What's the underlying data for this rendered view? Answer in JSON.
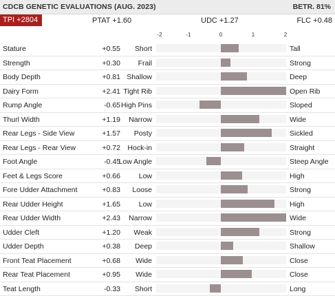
{
  "header": {
    "title": "CDCB GENETIC EVALUATIONS (AUG. 2023)",
    "reliability": "BETR. 81%"
  },
  "summary": {
    "tpi": "TPI +2804",
    "ptat": "PTAT +1.60",
    "udc": "UDC +1.27",
    "flc": "FLC +0.48"
  },
  "colors": {
    "tpi_badge": "#a8201e",
    "bar": "#9b8f8f",
    "header_bg": "#ececec"
  },
  "chart_data": {
    "type": "bar",
    "orientation": "horizontal",
    "xlim": [
      -2,
      2
    ],
    "ticks": [
      "-2",
      "-1",
      "0",
      "1",
      "2"
    ],
    "traits": [
      {
        "name": "Stature",
        "value": 0.55,
        "label": "+0.55",
        "low": "Short",
        "high": "Tall"
      },
      {
        "name": "Strength",
        "value": 0.3,
        "label": "+0.30",
        "low": "Frail",
        "high": "Strong"
      },
      {
        "name": "Body Depth",
        "value": 0.81,
        "label": "+0.81",
        "low": "Shallow",
        "high": "Deep"
      },
      {
        "name": "Dairy Form",
        "value": 2.41,
        "label": "+2.41",
        "low": "Tight Rib",
        "high": "Open Rib"
      },
      {
        "name": "Rump Angle",
        "value": -0.65,
        "label": "-0.65",
        "low": "High Pins",
        "high": "Sloped"
      },
      {
        "name": "Thurl Width",
        "value": 1.19,
        "label": "+1.19",
        "low": "Narrow",
        "high": "Wide"
      },
      {
        "name": "Rear Legs - Side View",
        "value": 1.57,
        "label": "+1.57",
        "low": "Posty",
        "high": "Sickled"
      },
      {
        "name": "Rear Legs - Rear View",
        "value": 0.72,
        "label": "+0.72",
        "low": "Hock-in",
        "high": "Straight"
      },
      {
        "name": "Foot Angle",
        "value": -0.45,
        "label": "-0.45",
        "low": "Low Angle",
        "high": "Steep Angle"
      },
      {
        "name": "Feet & Legs Score",
        "value": 0.66,
        "label": "+0.66",
        "low": "Low",
        "high": "High"
      },
      {
        "name": "Fore Udder Attachment",
        "value": 0.83,
        "label": "+0.83",
        "low": "Loose",
        "high": "Strong"
      },
      {
        "name": "Rear Udder Height",
        "value": 1.65,
        "label": "+1.65",
        "low": "Low",
        "high": "High"
      },
      {
        "name": "Rear Udder Width",
        "value": 2.43,
        "label": "+2.43",
        "low": "Narrow",
        "high": "Wide"
      },
      {
        "name": "Udder Cleft",
        "value": 1.2,
        "label": "+1.20",
        "low": "Weak",
        "high": "Strong"
      },
      {
        "name": "Udder Depth",
        "value": 0.38,
        "label": "+0.38",
        "low": "Deep",
        "high": "Shallow"
      },
      {
        "name": "Front Teat Placement",
        "value": 0.68,
        "label": "+0.68",
        "low": "Wide",
        "high": "Close"
      },
      {
        "name": "Rear Teat Placement",
        "value": 0.95,
        "label": "+0.95",
        "low": "Wide",
        "high": "Close"
      },
      {
        "name": "Teat Length",
        "value": -0.33,
        "label": "-0.33",
        "low": "Short",
        "high": "Long"
      }
    ]
  }
}
